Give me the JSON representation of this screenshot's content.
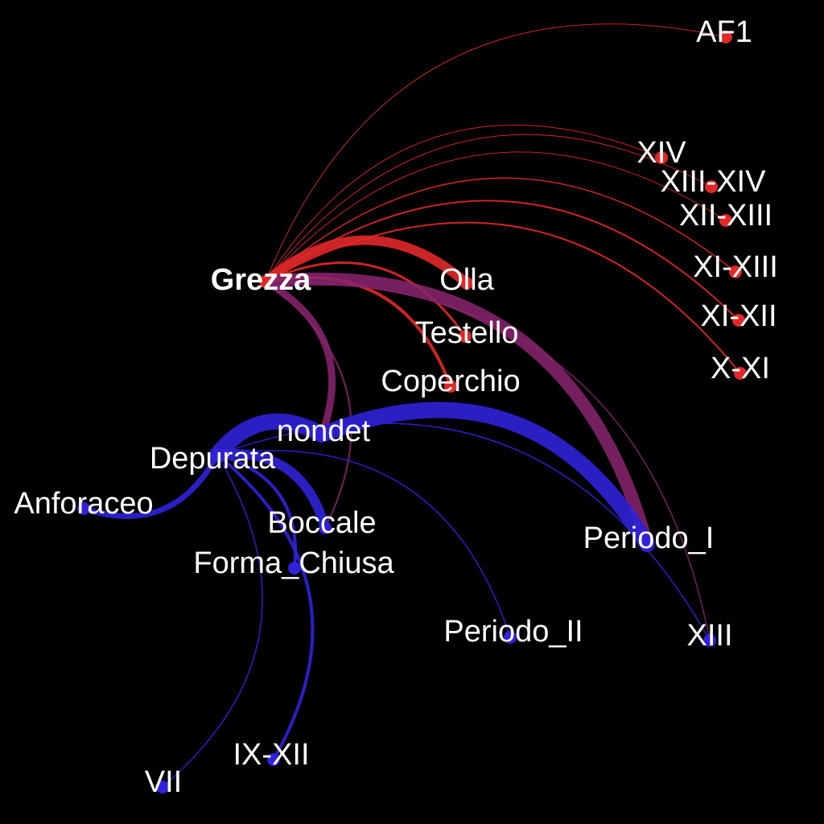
{
  "colors": {
    "background": "#000000",
    "red_group": "#e02828",
    "blue_group": "#2f22d8",
    "mixed_edge": "#8a2470",
    "label": "#ffffff"
  },
  "nodes": [
    {
      "id": "grezza",
      "label": "Grezza",
      "group": "red",
      "bold": true
    },
    {
      "id": "olla",
      "label": "Olla",
      "group": "red"
    },
    {
      "id": "testello",
      "label": "Testello",
      "group": "red"
    },
    {
      "id": "coperchio",
      "label": "Coperchio",
      "group": "red"
    },
    {
      "id": "af1",
      "label": "AF1",
      "group": "red"
    },
    {
      "id": "xiv",
      "label": "XIV",
      "group": "red"
    },
    {
      "id": "xiii_xiv",
      "label": "XIII-XIV",
      "group": "red"
    },
    {
      "id": "xii_xiii",
      "label": "XII-XIII",
      "group": "red"
    },
    {
      "id": "xi_xiii",
      "label": "XI-XIII",
      "group": "red"
    },
    {
      "id": "xi_xii",
      "label": "XI-XII",
      "group": "red"
    },
    {
      "id": "x_xi",
      "label": "X-XI",
      "group": "red"
    },
    {
      "id": "nondet",
      "label": "nondet",
      "group": "blue"
    },
    {
      "id": "depurata",
      "label": "Depurata",
      "group": "blue"
    },
    {
      "id": "anforaceo",
      "label": "Anforaceo",
      "group": "blue"
    },
    {
      "id": "boccale",
      "label": "Boccale",
      "group": "blue"
    },
    {
      "id": "forma_chiusa",
      "label": "Forma_Chiusa",
      "group": "blue"
    },
    {
      "id": "periodo_i",
      "label": "Periodo_I",
      "group": "blue"
    },
    {
      "id": "periodo_ii",
      "label": "Periodo_II",
      "group": "blue"
    },
    {
      "id": "xiii",
      "label": "XIII",
      "group": "blue"
    },
    {
      "id": "ix_xii",
      "label": "IX-XII",
      "group": "blue"
    },
    {
      "id": "vii",
      "label": "VII",
      "group": "blue"
    }
  ],
  "edges": [
    {
      "source": "grezza",
      "target": "af1",
      "weight": 1,
      "color": "red"
    },
    {
      "source": "grezza",
      "target": "xiv",
      "weight": 1,
      "color": "red"
    },
    {
      "source": "grezza",
      "target": "xiii_xiv",
      "weight": 1,
      "color": "red"
    },
    {
      "source": "grezza",
      "target": "xii_xiii",
      "weight": 1,
      "color": "red"
    },
    {
      "source": "grezza",
      "target": "xi_xiii",
      "weight": 1.5,
      "color": "red"
    },
    {
      "source": "grezza",
      "target": "xi_xii",
      "weight": 2,
      "color": "red"
    },
    {
      "source": "grezza",
      "target": "x_xi",
      "weight": 2,
      "color": "red"
    },
    {
      "source": "grezza",
      "target": "olla",
      "weight": 12,
      "color": "red"
    },
    {
      "source": "grezza",
      "target": "testello",
      "weight": 3,
      "color": "red"
    },
    {
      "source": "grezza",
      "target": "coperchio",
      "weight": 4,
      "color": "red"
    },
    {
      "source": "grezza",
      "target": "periodo_i",
      "weight": 16,
      "color": "mixed"
    },
    {
      "source": "grezza",
      "target": "nondet",
      "weight": 9,
      "color": "mixed"
    },
    {
      "source": "grezza",
      "target": "boccale",
      "weight": 2,
      "color": "mixed"
    },
    {
      "source": "grezza",
      "target": "xiii",
      "weight": 1.5,
      "color": "mixed"
    },
    {
      "source": "depurata",
      "target": "nondet",
      "weight": 20,
      "color": "blue"
    },
    {
      "source": "nondet",
      "target": "periodo_i",
      "weight": 20,
      "color": "blue"
    },
    {
      "source": "depurata",
      "target": "anforaceo",
      "weight": 7,
      "color": "blue"
    },
    {
      "source": "depurata",
      "target": "boccale",
      "weight": 12,
      "color": "blue"
    },
    {
      "source": "depurata",
      "target": "forma_chiusa",
      "weight": 4,
      "color": "blue"
    },
    {
      "source": "depurata",
      "target": "periodo_ii",
      "weight": 1.5,
      "color": "blue"
    },
    {
      "source": "depurata",
      "target": "xiii",
      "weight": 1.5,
      "color": "blue"
    },
    {
      "source": "depurata",
      "target": "ix_xii",
      "weight": 4,
      "color": "blue"
    },
    {
      "source": "depurata",
      "target": "vii",
      "weight": 1.5,
      "color": "blue"
    }
  ]
}
